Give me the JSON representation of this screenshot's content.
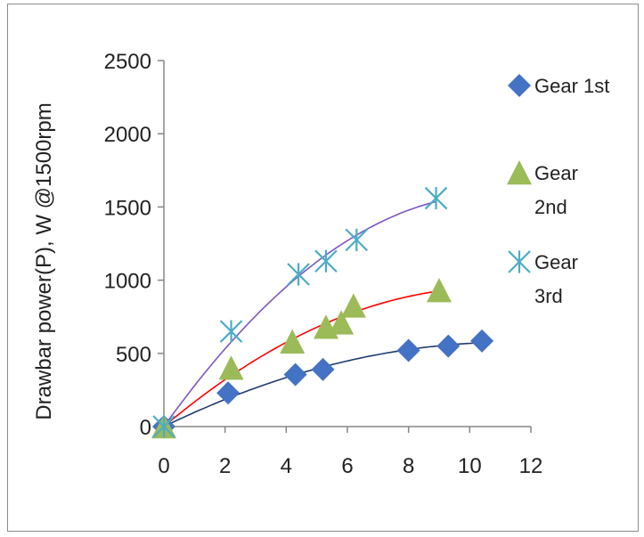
{
  "chart_data": {
    "type": "scatter",
    "title": "",
    "xlabel": "",
    "ylabel": "Drawbar power(P), W @1500rpm",
    "xlim": [
      0,
      12
    ],
    "ylim": [
      0,
      2500
    ],
    "xticks": [
      "0",
      "2",
      "4",
      "6",
      "8",
      "10",
      "12"
    ],
    "yticks": [
      "0",
      "500",
      "1000",
      "1500",
      "2000",
      "2500"
    ],
    "grid": false,
    "legend_position": "right",
    "series": [
      {
        "name": "Gear 1st",
        "legend_lines": [
          "Gear 1st"
        ],
        "marker": "diamond",
        "color": "#4472C4",
        "trend_color": "#1F3A6E",
        "trend_x_max": 10.4,
        "x": [
          0,
          2.1,
          4.3,
          5.2,
          8.0,
          9.3,
          10.4
        ],
        "y": [
          0,
          230,
          355,
          390,
          520,
          550,
          585
        ]
      },
      {
        "name": "Gear 2nd",
        "legend_lines": [
          "Gear",
          "2nd"
        ],
        "marker": "triangle",
        "color": "#9BBB59",
        "trend_color": "#FF0000",
        "trend_x_max": 9.0,
        "x": [
          0,
          2.2,
          4.2,
          5.3,
          5.8,
          6.2,
          9.0
        ],
        "y": [
          0,
          400,
          580,
          680,
          710,
          825,
          930
        ]
      },
      {
        "name": "Gear 3rd",
        "legend_lines": [
          "Gear",
          "3rd"
        ],
        "marker": "asterisk",
        "color": "#4BACC6",
        "trend_color": "#7E57C2",
        "trend_x_max": 8.9,
        "x": [
          0,
          2.2,
          4.4,
          5.3,
          6.3,
          8.9
        ],
        "y": [
          0,
          650,
          1040,
          1130,
          1275,
          1560
        ]
      }
    ]
  }
}
